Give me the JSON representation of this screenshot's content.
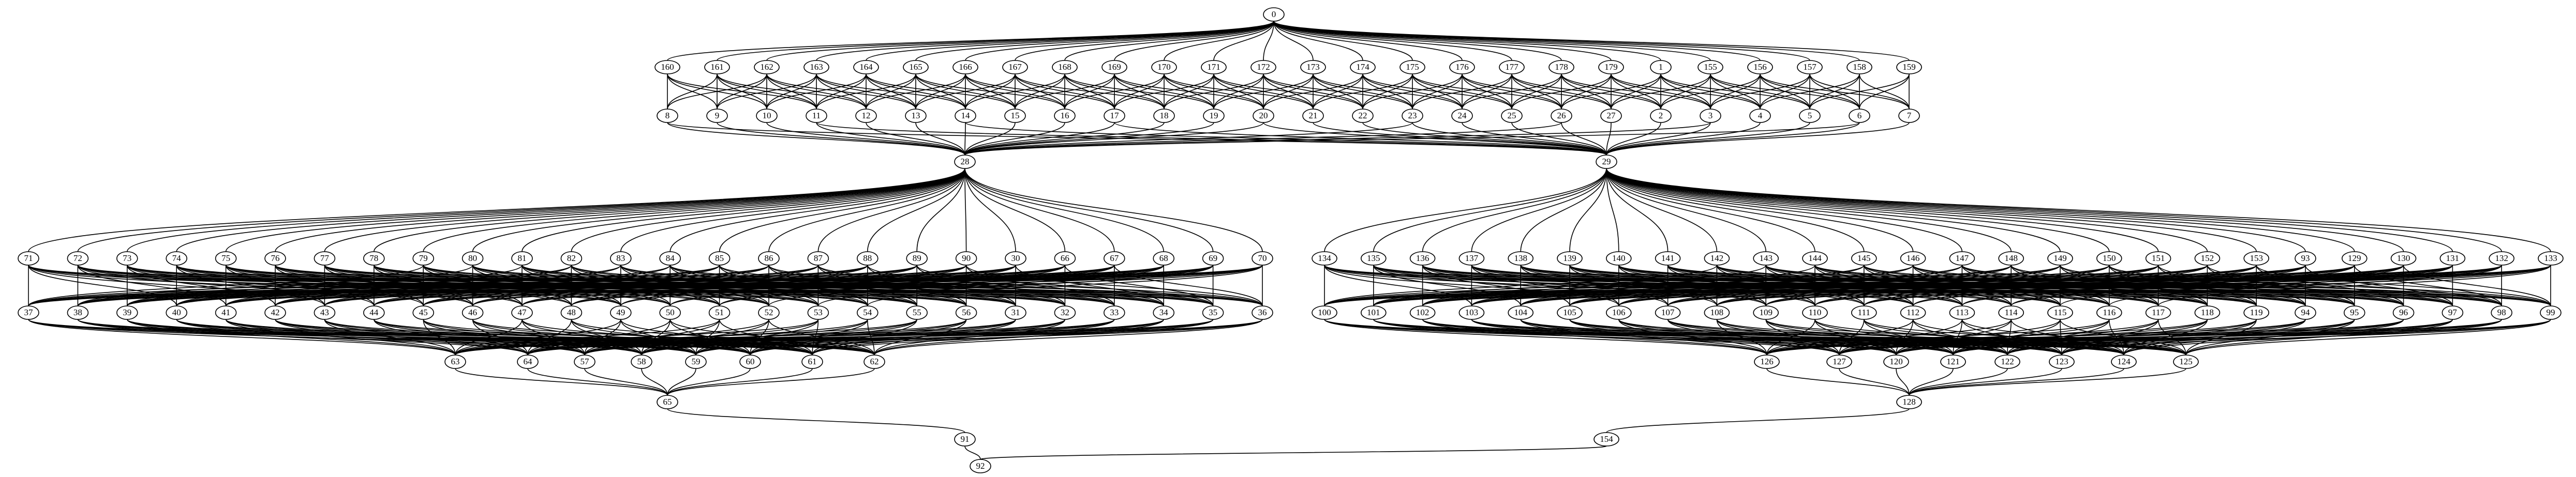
{
  "graph": {
    "layers": [
      [
        "0"
      ],
      [
        "160",
        "161",
        "162",
        "163",
        "164",
        "165",
        "166",
        "167",
        "168",
        "169",
        "170",
        "171",
        "172",
        "173",
        "174",
        "175",
        "176",
        "177",
        "178",
        "179",
        "1",
        "155",
        "156",
        "157",
        "158",
        "159"
      ],
      [
        "8",
        "9",
        "10",
        "11",
        "12",
        "13",
        "14",
        "15",
        "16",
        "17",
        "18",
        "19",
        "20",
        "21",
        "22",
        "23",
        "24",
        "25",
        "26",
        "27",
        "2",
        "3",
        "4",
        "5",
        "6",
        "7"
      ],
      [
        "28",
        "29"
      ],
      [
        "71",
        "72",
        "73",
        "74",
        "75",
        "76",
        "77",
        "78",
        "79",
        "80",
        "81",
        "82",
        "83",
        "84",
        "85",
        "86",
        "87",
        "88",
        "89",
        "90",
        "30",
        "66",
        "67",
        "68",
        "69",
        "70",
        "134",
        "135",
        "136",
        "137",
        "138",
        "139",
        "140",
        "141",
        "142",
        "143",
        "144",
        "145",
        "146",
        "147",
        "148",
        "149",
        "150",
        "151",
        "152",
        "153",
        "93",
        "129",
        "130",
        "131",
        "132",
        "133"
      ],
      [
        "37",
        "38",
        "39",
        "40",
        "41",
        "42",
        "43",
        "44",
        "45",
        "46",
        "47",
        "48",
        "49",
        "50",
        "51",
        "52",
        "53",
        "54",
        "55",
        "56",
        "31",
        "32",
        "33",
        "34",
        "35",
        "36",
        "100",
        "101",
        "102",
        "103",
        "104",
        "105",
        "106",
        "107",
        "108",
        "109",
        "110",
        "111",
        "112",
        "113",
        "114",
        "115",
        "116",
        "117",
        "118",
        "119",
        "94",
        "95",
        "96",
        "97",
        "98",
        "99"
      ],
      [
        "63",
        "64",
        "57",
        "58",
        "59",
        "60",
        "61",
        "62",
        "126",
        "127",
        "120",
        "121",
        "122",
        "123",
        "124",
        "125"
      ],
      [
        "65",
        "128"
      ],
      [
        "91",
        "154"
      ],
      [
        "92"
      ]
    ],
    "highlighted_nodes": [
      "65",
      "128",
      "92"
    ],
    "colors": {
      "edge": "#000000",
      "node_border": "#000000",
      "highlight_border": "#0000ff",
      "background": "#ffffff"
    }
  }
}
